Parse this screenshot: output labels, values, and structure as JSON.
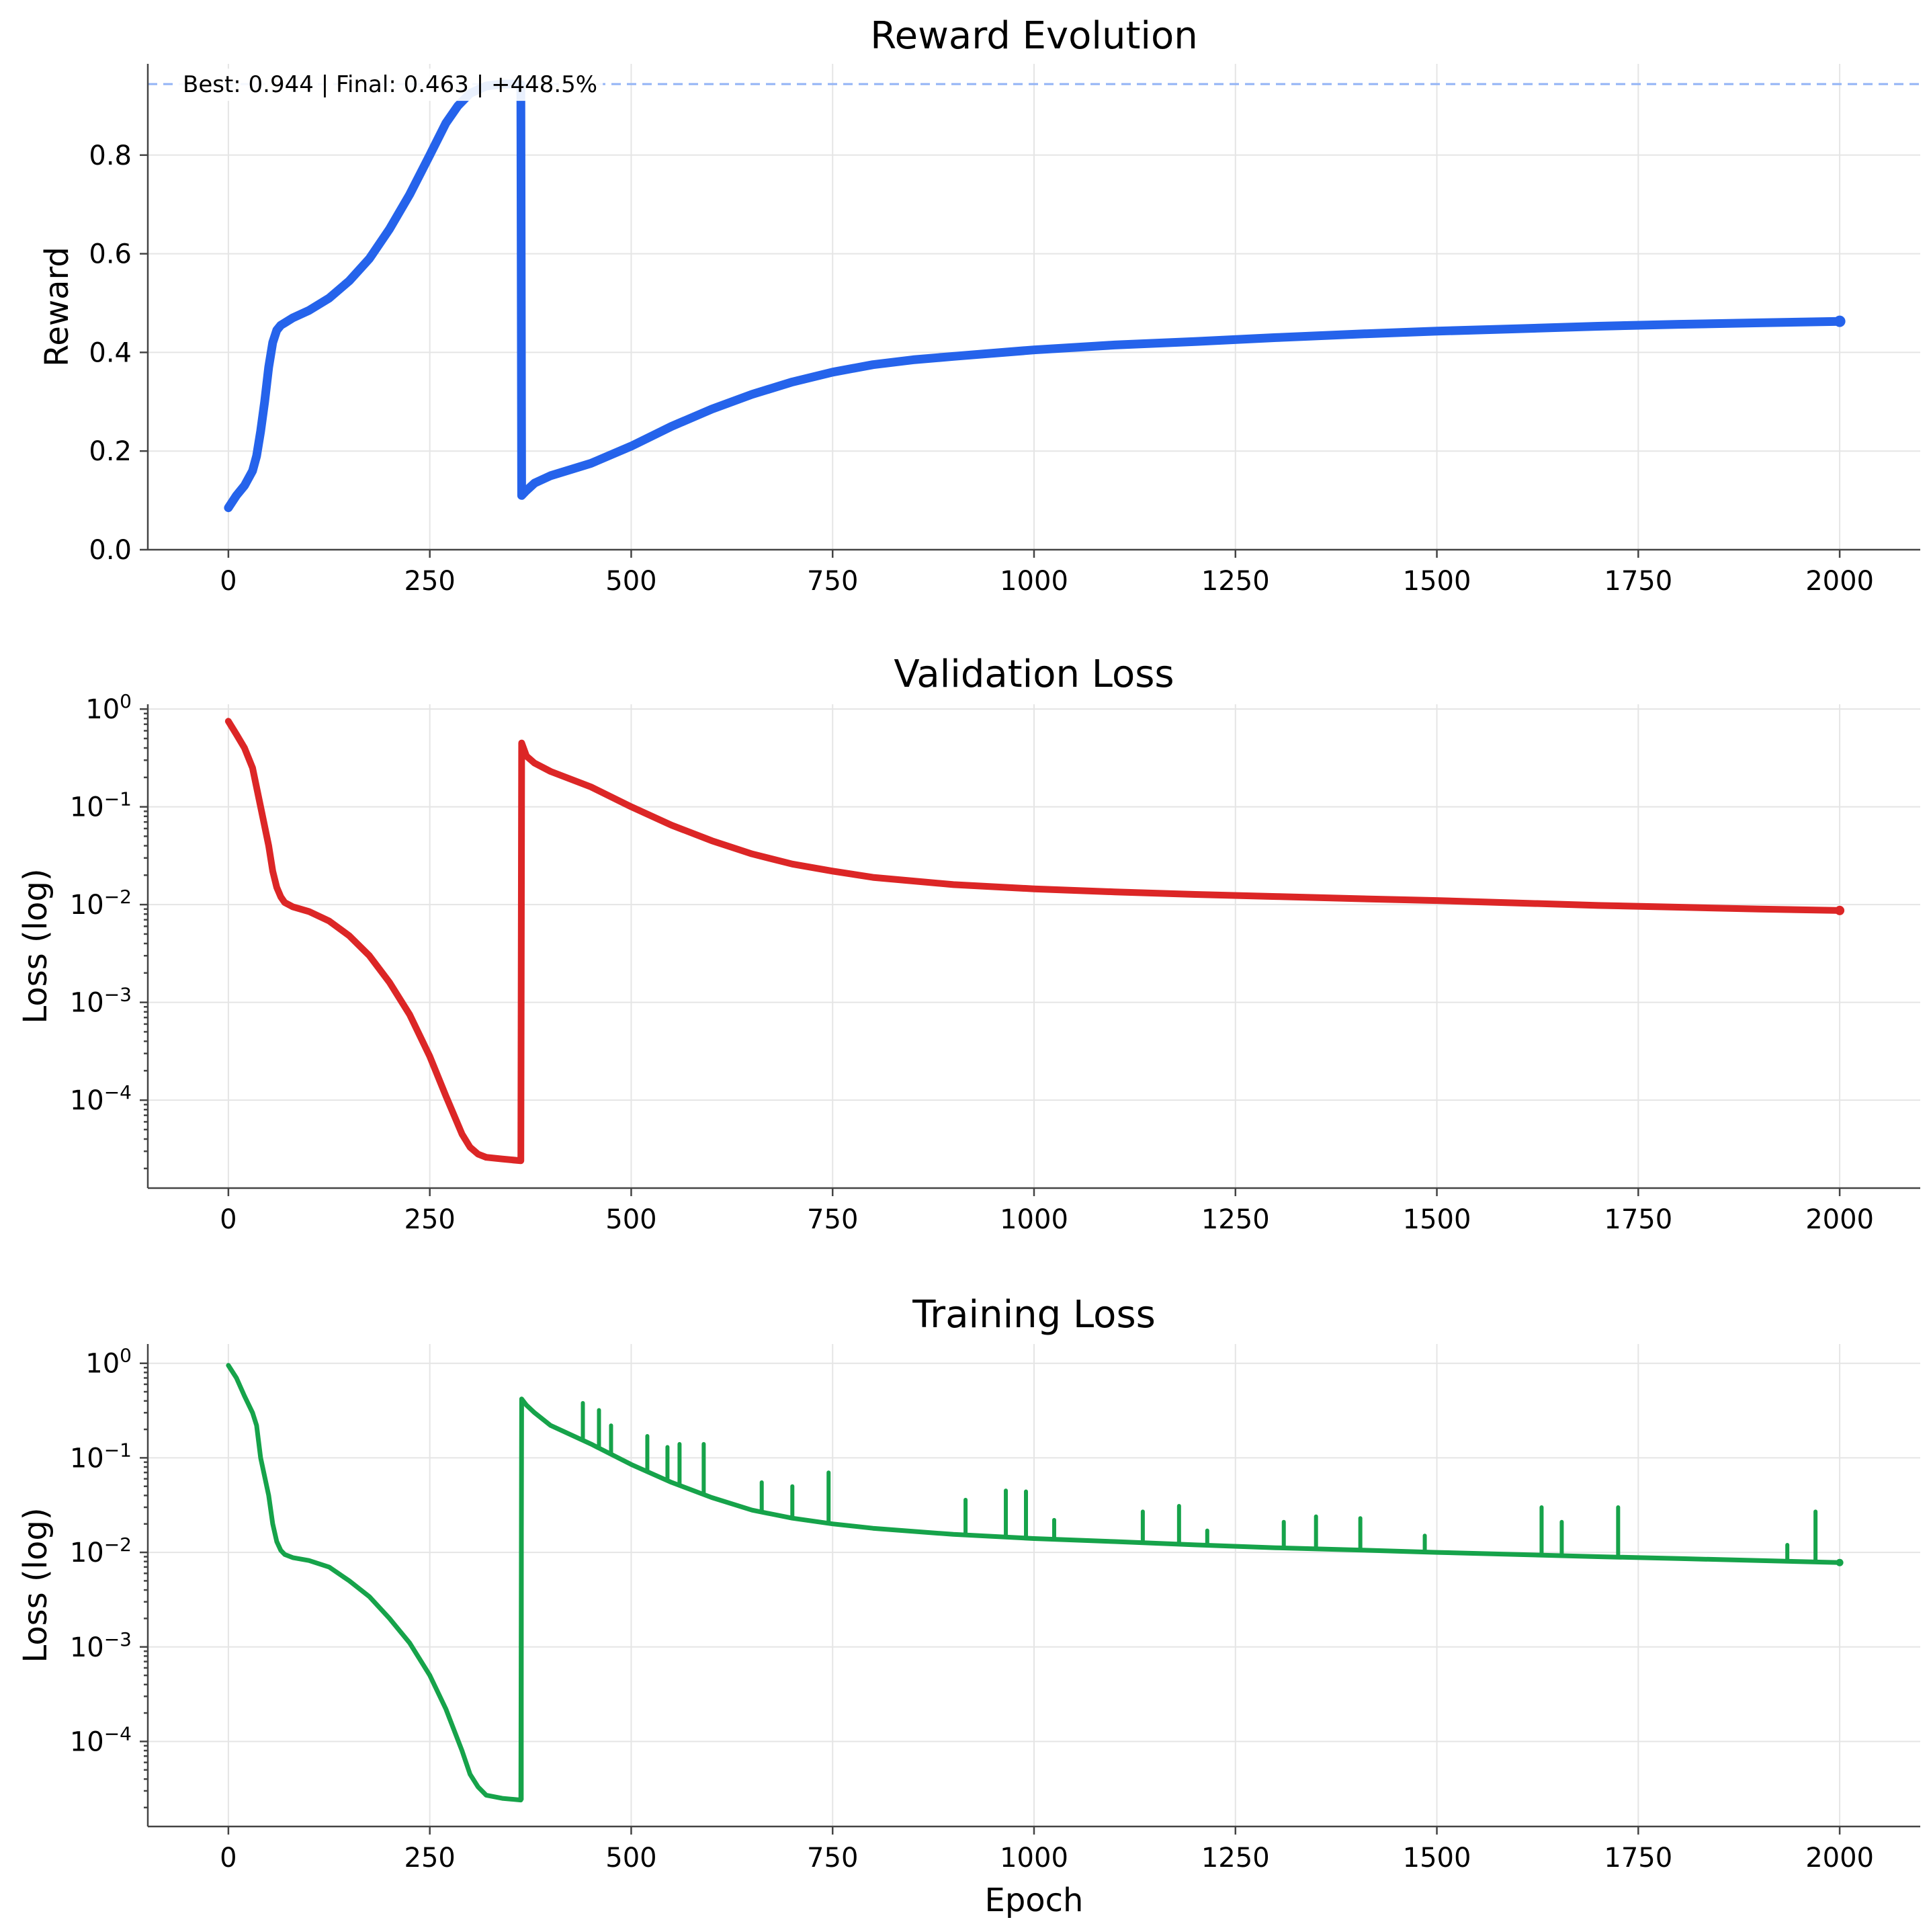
{
  "chart_data": [
    {
      "type": "line",
      "title": "Reward Evolution",
      "xlabel": "",
      "ylabel": "Reward",
      "xlim": [
        -100,
        2100
      ],
      "ylim": [
        0,
        0.985
      ],
      "yscale": "linear",
      "grid": true,
      "xticks": [
        0,
        250,
        500,
        750,
        1000,
        1250,
        1500,
        1750,
        2000
      ],
      "xtick_labels": [
        "0",
        "250",
        "500",
        "750",
        "1000",
        "1250",
        "1500",
        "1750",
        "2000"
      ],
      "yticks": [
        0,
        0.2,
        0.4,
        0.6,
        0.8
      ],
      "ytick_labels": [
        "0.0",
        "0.2",
        "0.4",
        "0.6",
        "0.8"
      ],
      "color": "#2563eb",
      "reference_line": {
        "y": 0.944,
        "color": "#93b4f5",
        "style": "dashed"
      },
      "annotation": "Best: 0.944 | Final: 0.463 | +448.5%",
      "series": [
        {
          "x": [
            0,
            10,
            20,
            30,
            35,
            40,
            45,
            50,
            55,
            60,
            65,
            70,
            80,
            100,
            125,
            150,
            175,
            200,
            225,
            250,
            270,
            285,
            300,
            320,
            340,
            355,
            363,
            364,
            370,
            380,
            400,
            450,
            500,
            550,
            600,
            650,
            700,
            750,
            800,
            850,
            900,
            1000,
            1100,
            1200,
            1300,
            1400,
            1500,
            1600,
            1700,
            1800,
            1900,
            2000
          ],
          "y": [
            0.085,
            0.11,
            0.13,
            0.16,
            0.19,
            0.24,
            0.3,
            0.37,
            0.42,
            0.445,
            0.455,
            0.46,
            0.47,
            0.485,
            0.51,
            0.545,
            0.59,
            0.65,
            0.72,
            0.8,
            0.865,
            0.9,
            0.925,
            0.94,
            0.944,
            0.944,
            0.943,
            0.11,
            0.12,
            0.135,
            0.15,
            0.175,
            0.21,
            0.25,
            0.285,
            0.315,
            0.34,
            0.36,
            0.375,
            0.385,
            0.392,
            0.405,
            0.415,
            0.422,
            0.43,
            0.437,
            0.443,
            0.448,
            0.453,
            0.457,
            0.46,
            0.463
          ]
        }
      ]
    },
    {
      "type": "line",
      "title": "Validation Loss",
      "xlabel": "",
      "ylabel": "Loss (log)",
      "xlim": [
        -100,
        2100
      ],
      "ylim": [
        1.26e-05,
        1.12
      ],
      "yscale": "log",
      "grid": true,
      "xticks": [
        0,
        250,
        500,
        750,
        1000,
        1250,
        1500,
        1750,
        2000
      ],
      "xtick_labels": [
        "0",
        "250",
        "500",
        "750",
        "1000",
        "1250",
        "1500",
        "1750",
        "2000"
      ],
      "yticks": [
        1,
        0.1,
        0.01,
        0.001,
        0.0001
      ],
      "ytick_labels": [
        [
          "10",
          "0"
        ],
        [
          "10",
          "−1"
        ],
        [
          "10",
          "−2"
        ],
        [
          "10",
          "−3"
        ],
        [
          "10",
          "−4"
        ]
      ],
      "color": "#dc2626",
      "series": [
        {
          "x": [
            0,
            10,
            20,
            30,
            40,
            50,
            55,
            60,
            65,
            70,
            80,
            100,
            125,
            150,
            175,
            200,
            225,
            250,
            270,
            290,
            300,
            310,
            320,
            340,
            363,
            364,
            370,
            380,
            400,
            450,
            500,
            550,
            600,
            650,
            700,
            750,
            800,
            900,
            1000,
            1100,
            1200,
            1300,
            1400,
            1500,
            1600,
            1700,
            1800,
            1900,
            2000
          ],
          "y": [
            0.75,
            0.55,
            0.4,
            0.25,
            0.1,
            0.04,
            0.022,
            0.015,
            0.012,
            0.0105,
            0.0095,
            0.0085,
            0.0068,
            0.0048,
            0.003,
            0.0016,
            0.00075,
            0.00028,
            0.00011,
            4.5e-05,
            3.3e-05,
            2.8e-05,
            2.6e-05,
            2.5e-05,
            2.4e-05,
            0.45,
            0.33,
            0.28,
            0.23,
            0.16,
            0.1,
            0.065,
            0.045,
            0.033,
            0.026,
            0.022,
            0.019,
            0.016,
            0.0145,
            0.0135,
            0.0127,
            0.0121,
            0.0115,
            0.011,
            0.0104,
            0.0098,
            0.0094,
            0.009,
            0.0087
          ]
        }
      ]
    },
    {
      "type": "line",
      "title": "Training Loss",
      "xlabel": "Epoch",
      "ylabel": "Loss (log)",
      "xlim": [
        -100,
        2100
      ],
      "ylim": [
        1.26e-05,
        1.6
      ],
      "yscale": "log",
      "grid": true,
      "xticks": [
        0,
        250,
        500,
        750,
        1000,
        1250,
        1500,
        1750,
        2000
      ],
      "xtick_labels": [
        "0",
        "250",
        "500",
        "750",
        "1000",
        "1250",
        "1500",
        "1750",
        "2000"
      ],
      "yticks": [
        1,
        0.1,
        0.01,
        0.001,
        0.0001
      ],
      "ytick_labels": [
        [
          "10",
          "0"
        ],
        [
          "10",
          "−1"
        ],
        [
          "10",
          "−2"
        ],
        [
          "10",
          "−3"
        ],
        [
          "10",
          "−4"
        ]
      ],
      "color": "#16a34a",
      "series": [
        {
          "x": [
            0,
            10,
            20,
            30,
            35,
            40,
            50,
            55,
            60,
            65,
            70,
            80,
            100,
            125,
            150,
            175,
            200,
            225,
            250,
            270,
            290,
            300,
            310,
            320,
            340,
            363,
            364,
            370,
            380,
            400,
            450,
            500,
            550,
            600,
            650,
            700,
            750,
            800,
            900,
            1000,
            1100,
            1200,
            1300,
            1400,
            1500,
            1600,
            1700,
            1800,
            1900,
            2000
          ],
          "y": [
            0.95,
            0.7,
            0.45,
            0.3,
            0.22,
            0.1,
            0.04,
            0.02,
            0.013,
            0.0105,
            0.0095,
            0.0088,
            0.0082,
            0.007,
            0.005,
            0.0034,
            0.002,
            0.0011,
            0.0005,
            0.00022,
            8e-05,
            4.5e-05,
            3.3e-05,
            2.7e-05,
            2.5e-05,
            2.4e-05,
            0.42,
            0.36,
            0.3,
            0.22,
            0.14,
            0.085,
            0.055,
            0.038,
            0.028,
            0.023,
            0.02,
            0.018,
            0.0155,
            0.014,
            0.013,
            0.012,
            0.0112,
            0.0106,
            0.01,
            0.0095,
            0.009,
            0.0086,
            0.0082,
            0.0078
          ]
        }
      ],
      "spikes": [
        {
          "x": 440,
          "y": 0.38
        },
        {
          "x": 460,
          "y": 0.32
        },
        {
          "x": 475,
          "y": 0.22
        },
        {
          "x": 520,
          "y": 0.17
        },
        {
          "x": 545,
          "y": 0.13
        },
        {
          "x": 560,
          "y": 0.14
        },
        {
          "x": 590,
          "y": 0.14
        },
        {
          "x": 662,
          "y": 0.055
        },
        {
          "x": 700,
          "y": 0.05
        },
        {
          "x": 745,
          "y": 0.07
        },
        {
          "x": 915,
          "y": 0.036
        },
        {
          "x": 965,
          "y": 0.045
        },
        {
          "x": 990,
          "y": 0.044
        },
        {
          "x": 1025,
          "y": 0.022
        },
        {
          "x": 1135,
          "y": 0.027
        },
        {
          "x": 1180,
          "y": 0.031
        },
        {
          "x": 1215,
          "y": 0.017
        },
        {
          "x": 1310,
          "y": 0.021
        },
        {
          "x": 1350,
          "y": 0.024
        },
        {
          "x": 1405,
          "y": 0.023
        },
        {
          "x": 1485,
          "y": 0.015
        },
        {
          "x": 1630,
          "y": 0.03
        },
        {
          "x": 1655,
          "y": 0.021
        },
        {
          "x": 1725,
          "y": 0.03
        },
        {
          "x": 1935,
          "y": 0.012
        },
        {
          "x": 1970,
          "y": 0.027
        }
      ]
    }
  ]
}
